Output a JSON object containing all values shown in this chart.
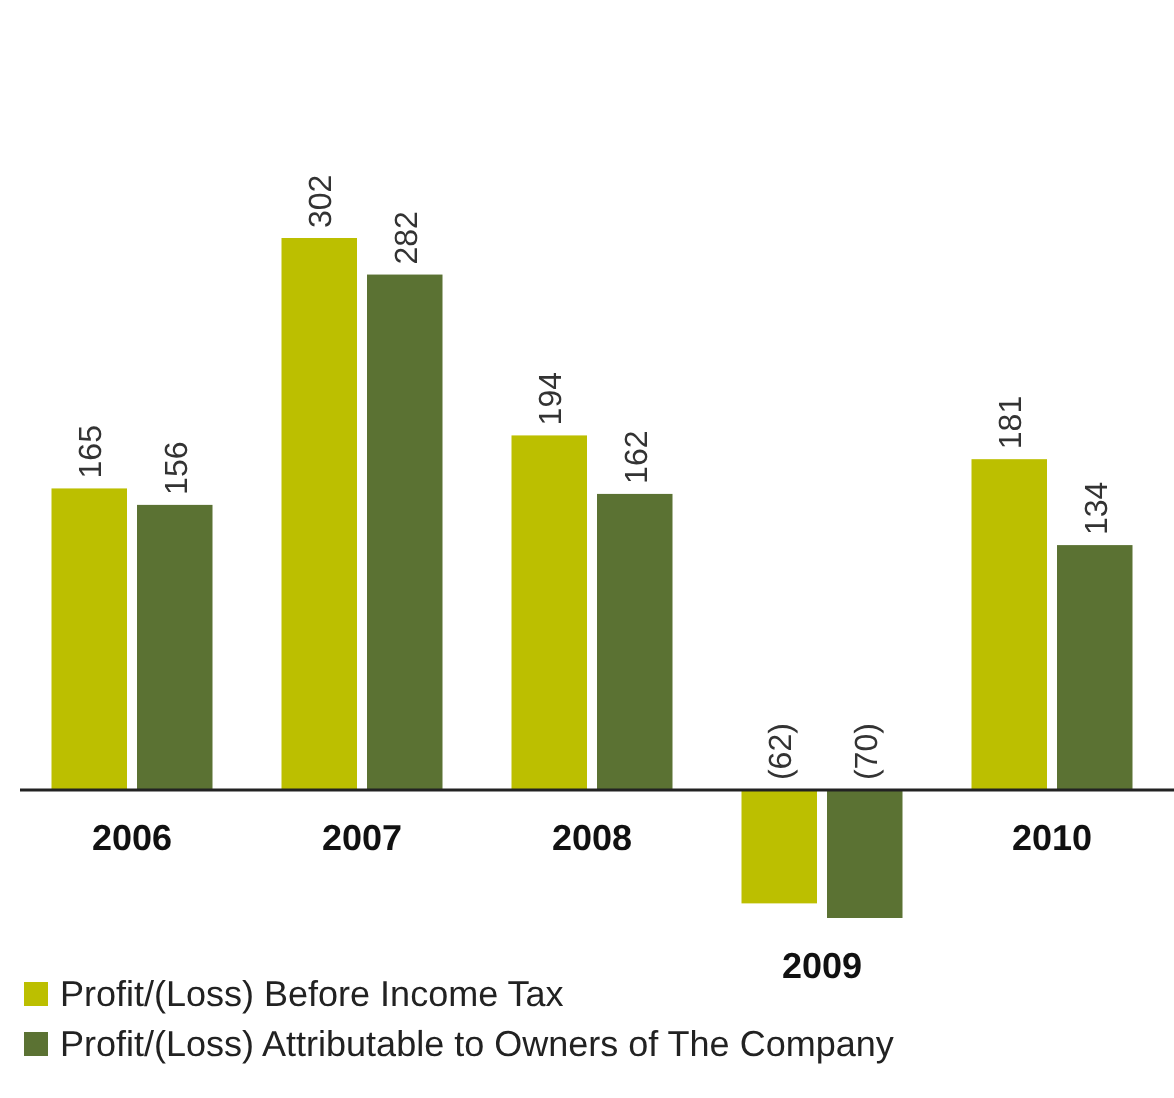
{
  "chart_data": {
    "type": "bar",
    "categories": [
      "2006",
      "2007",
      "2008",
      "2009",
      "2010"
    ],
    "series": [
      {
        "name": "Profit/(Loss) Before Income Tax",
        "color": "#bcbf00",
        "values": [
          165,
          302,
          194,
          -62,
          181
        ],
        "value_labels": [
          "165",
          "302",
          "194",
          "(62)",
          "181"
        ]
      },
      {
        "name": "Profit/(Loss) Attributable to Owners of The Company",
        "color": "#5b7233",
        "values": [
          156,
          282,
          162,
          -70,
          134
        ],
        "value_labels": [
          "156",
          "282",
          "162",
          "(70)",
          "134"
        ]
      }
    ],
    "legend": "bottom left"
  }
}
